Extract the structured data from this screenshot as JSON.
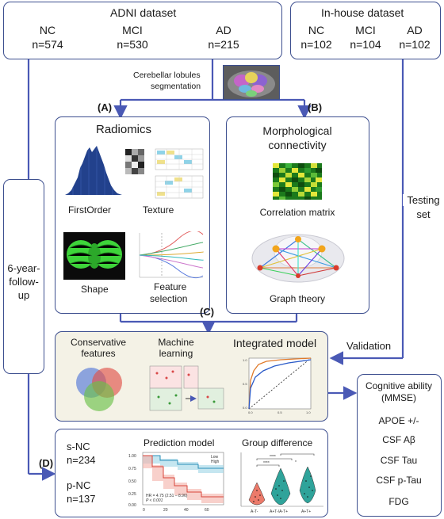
{
  "adni": {
    "title": "ADNI dataset",
    "groups": [
      {
        "label": "NC",
        "n": "n=574"
      },
      {
        "label": "MCI",
        "n": "n=530"
      },
      {
        "label": "AD",
        "n": "n=215"
      }
    ]
  },
  "inhouse": {
    "title": "In-house dataset",
    "groups": [
      {
        "label": "NC",
        "n": "n=102"
      },
      {
        "label": "MCI",
        "n": "n=104"
      },
      {
        "label": "AD",
        "n": "n=102"
      }
    ]
  },
  "segmentation": {
    "line1": "Cerebellar lobules",
    "line2": "segmentation"
  },
  "panel_a": {
    "tag": "(A)",
    "title": "Radiomics",
    "first_order": "FirstOrder",
    "texture": "Texture",
    "shape": "Shape",
    "feature1": "Feature",
    "feature2": "selection"
  },
  "panel_b": {
    "tag": "(B)",
    "title1": "Morphological",
    "title2": "connectivity",
    "corr": "Correlation matrix",
    "graph": "Graph theory"
  },
  "panel_c": {
    "tag": "(C)",
    "cons1": "Conservative",
    "cons2": "features",
    "ml1": "Machine",
    "ml2": "learning",
    "integrated": "Integrated model"
  },
  "panel_d": {
    "tag": "(D)",
    "snc": "s-NC",
    "snc_n": "n=234",
    "pnc": "p-NC",
    "pnc_n": "n=137",
    "pred_title": "Prediction model",
    "group_title": "Group difference",
    "km_legend": [
      "Low",
      "High"
    ],
    "km_hr": "HR = 4.75 (2.51 – 8.96)",
    "km_p": "P < 0.001",
    "km_y": [
      "1.00",
      "0.75",
      "0.50",
      "0.25",
      "0.00"
    ],
    "km_x": [
      "0",
      "20",
      "40",
      "60"
    ],
    "violin_x": [
      "A-T-",
      "A+T-/A-T+",
      "A+T+"
    ],
    "violin_sig": [
      "****",
      "*",
      "****"
    ]
  },
  "followup": {
    "l1": "6-year-",
    "l2": "follow-",
    "l3": "up"
  },
  "testing": {
    "l1": "Testing",
    "l2": "set"
  },
  "validation": "Validation",
  "cognitive": {
    "title1": "Cognitive ability",
    "title2": "(MMSE)",
    "items": [
      "APOE +/-",
      "CSF Aβ",
      "CSF Tau",
      "CSF p-Tau",
      "FDG"
    ]
  },
  "colors": {
    "border": "#3d4f8f",
    "accent": "#4a59b5",
    "panel_c_bg": "#f4f2e6",
    "teal": "#2fa39a",
    "salmon": "#ec7a6a"
  }
}
